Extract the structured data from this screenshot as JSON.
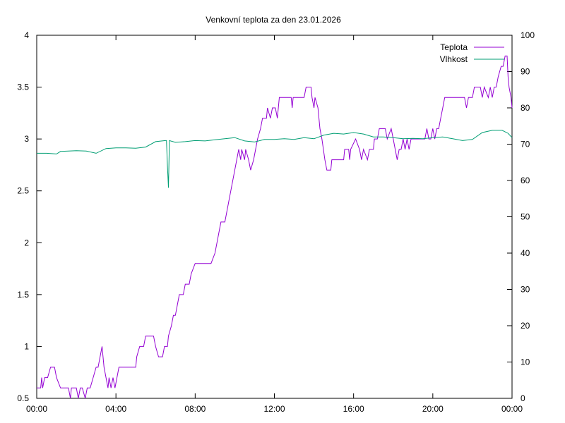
{
  "chart_data": {
    "type": "line",
    "title": "Venkovní teplota za den 23.01.2026",
    "x_ticks": [
      "00:00",
      "04:00",
      "08:00",
      "12:00",
      "16:00",
      "20:00",
      "00:00"
    ],
    "x_range_hours": [
      0,
      24
    ],
    "y_left": {
      "ticks": [
        "0.5",
        "1",
        "1.5",
        "2",
        "2.5",
        "3",
        "3.5",
        "4"
      ],
      "range": [
        0.5,
        4
      ]
    },
    "y_right": {
      "ticks": [
        "0",
        "10",
        "20",
        "30",
        "40",
        "50",
        "60",
        "70",
        "80",
        "90",
        "100"
      ],
      "range": [
        0,
        100
      ]
    },
    "grid": false,
    "legend_position": "top-right",
    "series": [
      {
        "name": "Teplota",
        "axis": "left",
        "color": "#9400d3",
        "points": [
          [
            0.0,
            0.6
          ],
          [
            0.2,
            0.6
          ],
          [
            0.25,
            0.7
          ],
          [
            0.3,
            0.6
          ],
          [
            0.4,
            0.7
          ],
          [
            0.55,
            0.7
          ],
          [
            0.7,
            0.8
          ],
          [
            0.9,
            0.8
          ],
          [
            1.0,
            0.7
          ],
          [
            1.2,
            0.6
          ],
          [
            1.6,
            0.6
          ],
          [
            1.7,
            0.5
          ],
          [
            1.75,
            0.6
          ],
          [
            2.0,
            0.6
          ],
          [
            2.1,
            0.5
          ],
          [
            2.2,
            0.6
          ],
          [
            2.3,
            0.6
          ],
          [
            2.45,
            0.5
          ],
          [
            2.55,
            0.6
          ],
          [
            2.7,
            0.6
          ],
          [
            2.85,
            0.7
          ],
          [
            3.0,
            0.8
          ],
          [
            3.1,
            0.8
          ],
          [
            3.2,
            0.9
          ],
          [
            3.3,
            1.0
          ],
          [
            3.4,
            0.8
          ],
          [
            3.5,
            0.7
          ],
          [
            3.6,
            0.6
          ],
          [
            3.65,
            0.7
          ],
          [
            3.75,
            0.6
          ],
          [
            3.85,
            0.7
          ],
          [
            3.95,
            0.6
          ],
          [
            4.05,
            0.7
          ],
          [
            4.15,
            0.8
          ],
          [
            4.4,
            0.8
          ],
          [
            4.8,
            0.8
          ],
          [
            5.0,
            0.8
          ],
          [
            5.05,
            0.9
          ],
          [
            5.2,
            1.0
          ],
          [
            5.4,
            1.0
          ],
          [
            5.5,
            1.1
          ],
          [
            5.9,
            1.1
          ],
          [
            6.0,
            1.0
          ],
          [
            6.15,
            0.9
          ],
          [
            6.35,
            0.9
          ],
          [
            6.45,
            1.0
          ],
          [
            6.6,
            1.0
          ],
          [
            6.65,
            1.1
          ],
          [
            6.8,
            1.2
          ],
          [
            6.9,
            1.3
          ],
          [
            7.0,
            1.3
          ],
          [
            7.1,
            1.4
          ],
          [
            7.2,
            1.5
          ],
          [
            7.4,
            1.5
          ],
          [
            7.5,
            1.6
          ],
          [
            7.7,
            1.6
          ],
          [
            7.8,
            1.7
          ],
          [
            8.0,
            1.8
          ],
          [
            8.4,
            1.8
          ],
          [
            8.8,
            1.8
          ],
          [
            9.0,
            1.9
          ],
          [
            9.1,
            2.0
          ],
          [
            9.2,
            2.1
          ],
          [
            9.3,
            2.2
          ],
          [
            9.5,
            2.2
          ],
          [
            9.6,
            2.3
          ],
          [
            9.7,
            2.4
          ],
          [
            9.8,
            2.5
          ],
          [
            9.9,
            2.6
          ],
          [
            10.0,
            2.7
          ],
          [
            10.1,
            2.8
          ],
          [
            10.2,
            2.9
          ],
          [
            10.3,
            2.8
          ],
          [
            10.35,
            2.9
          ],
          [
            10.5,
            2.8
          ],
          [
            10.55,
            2.9
          ],
          [
            10.7,
            2.8
          ],
          [
            10.8,
            2.7
          ],
          [
            10.95,
            2.8
          ],
          [
            11.05,
            2.9
          ],
          [
            11.15,
            3.0
          ],
          [
            11.3,
            3.1
          ],
          [
            11.4,
            3.2
          ],
          [
            11.6,
            3.2
          ],
          [
            11.65,
            3.3
          ],
          [
            11.8,
            3.2
          ],
          [
            11.9,
            3.3
          ],
          [
            12.05,
            3.3
          ],
          [
            12.15,
            3.2
          ],
          [
            12.25,
            3.4
          ],
          [
            12.5,
            3.4
          ],
          [
            12.85,
            3.4
          ],
          [
            12.9,
            3.3
          ],
          [
            12.95,
            3.4
          ],
          [
            13.5,
            3.4
          ],
          [
            13.6,
            3.5
          ],
          [
            13.85,
            3.5
          ],
          [
            13.9,
            3.4
          ],
          [
            14.0,
            3.3
          ],
          [
            14.05,
            3.4
          ],
          [
            14.2,
            3.3
          ],
          [
            14.3,
            3.1
          ],
          [
            14.4,
            3.0
          ],
          [
            14.55,
            2.8
          ],
          [
            14.65,
            2.7
          ],
          [
            14.85,
            2.7
          ],
          [
            14.9,
            2.8
          ],
          [
            15.5,
            2.8
          ],
          [
            15.55,
            2.9
          ],
          [
            15.75,
            2.9
          ],
          [
            15.8,
            2.8
          ],
          [
            15.85,
            2.9
          ],
          [
            16.1,
            3.0
          ],
          [
            16.3,
            2.9
          ],
          [
            16.4,
            2.8
          ],
          [
            16.5,
            2.9
          ],
          [
            16.7,
            2.8
          ],
          [
            16.8,
            2.9
          ],
          [
            17.0,
            2.9
          ],
          [
            17.05,
            3.0
          ],
          [
            17.2,
            3.0
          ],
          [
            17.3,
            3.1
          ],
          [
            17.6,
            3.1
          ],
          [
            17.7,
            3.0
          ],
          [
            17.9,
            3.1
          ],
          [
            18.0,
            3.0
          ],
          [
            18.1,
            2.9
          ],
          [
            18.2,
            2.8
          ],
          [
            18.3,
            2.9
          ],
          [
            18.4,
            2.9
          ],
          [
            18.5,
            3.0
          ],
          [
            18.6,
            2.9
          ],
          [
            18.7,
            3.0
          ],
          [
            18.8,
            2.9
          ],
          [
            18.9,
            3.0
          ],
          [
            19.6,
            3.0
          ],
          [
            19.7,
            3.1
          ],
          [
            19.8,
            3.0
          ],
          [
            19.9,
            3.0
          ],
          [
            20.0,
            3.1
          ],
          [
            20.1,
            3.0
          ],
          [
            20.2,
            3.1
          ],
          [
            20.3,
            3.1
          ],
          [
            20.4,
            3.2
          ],
          [
            20.5,
            3.3
          ],
          [
            20.6,
            3.4
          ],
          [
            21.6,
            3.4
          ],
          [
            21.7,
            3.3
          ],
          [
            21.8,
            3.4
          ],
          [
            22.0,
            3.4
          ],
          [
            22.1,
            3.5
          ],
          [
            22.4,
            3.5
          ],
          [
            22.5,
            3.4
          ],
          [
            22.6,
            3.5
          ],
          [
            22.8,
            3.4
          ],
          [
            22.9,
            3.5
          ],
          [
            23.0,
            3.4
          ],
          [
            23.1,
            3.5
          ],
          [
            23.2,
            3.5
          ],
          [
            23.3,
            3.6
          ],
          [
            23.45,
            3.7
          ],
          [
            23.55,
            3.7
          ],
          [
            23.65,
            3.8
          ],
          [
            23.75,
            3.8
          ],
          [
            23.8,
            3.6
          ],
          [
            23.85,
            3.5
          ],
          [
            23.95,
            3.4
          ],
          [
            24.0,
            3.3
          ]
        ]
      },
      {
        "name": "Vlhkost",
        "axis": "right",
        "color": "#009e73",
        "points": [
          [
            0.0,
            67.5
          ],
          [
            0.5,
            67.5
          ],
          [
            1.0,
            67.3
          ],
          [
            1.2,
            68.0
          ],
          [
            2.0,
            68.2
          ],
          [
            2.5,
            68.1
          ],
          [
            3.0,
            67.5
          ],
          [
            3.5,
            68.8
          ],
          [
            4.0,
            69.0
          ],
          [
            4.5,
            69.0
          ],
          [
            5.0,
            68.9
          ],
          [
            5.5,
            69.2
          ],
          [
            6.0,
            70.7
          ],
          [
            6.5,
            71.0
          ],
          [
            6.55,
            71.0
          ],
          [
            6.6,
            64.0
          ],
          [
            6.65,
            58.0
          ],
          [
            6.7,
            71.0
          ],
          [
            7.0,
            70.5
          ],
          [
            7.5,
            70.7
          ],
          [
            8.0,
            71.0
          ],
          [
            8.5,
            70.9
          ],
          [
            9.0,
            71.2
          ],
          [
            9.5,
            71.5
          ],
          [
            10.0,
            71.8
          ],
          [
            10.5,
            70.9
          ],
          [
            11.0,
            70.6
          ],
          [
            11.5,
            71.3
          ],
          [
            12.0,
            71.3
          ],
          [
            12.5,
            71.5
          ],
          [
            13.0,
            71.3
          ],
          [
            13.5,
            71.8
          ],
          [
            14.0,
            71.5
          ],
          [
            14.5,
            72.5
          ],
          [
            15.0,
            73.0
          ],
          [
            15.5,
            72.8
          ],
          [
            16.0,
            73.2
          ],
          [
            16.5,
            72.8
          ],
          [
            17.0,
            72.0
          ],
          [
            17.5,
            72.0
          ],
          [
            18.0,
            71.8
          ],
          [
            18.5,
            71.5
          ],
          [
            19.0,
            71.6
          ],
          [
            19.5,
            71.5
          ],
          [
            20.0,
            71.8
          ],
          [
            20.5,
            72.0
          ],
          [
            21.0,
            71.5
          ],
          [
            21.5,
            71.0
          ],
          [
            22.0,
            71.3
          ],
          [
            22.5,
            73.2
          ],
          [
            23.0,
            73.8
          ],
          [
            23.5,
            73.8
          ],
          [
            23.8,
            73.0
          ],
          [
            24.0,
            71.8
          ]
        ]
      }
    ]
  }
}
